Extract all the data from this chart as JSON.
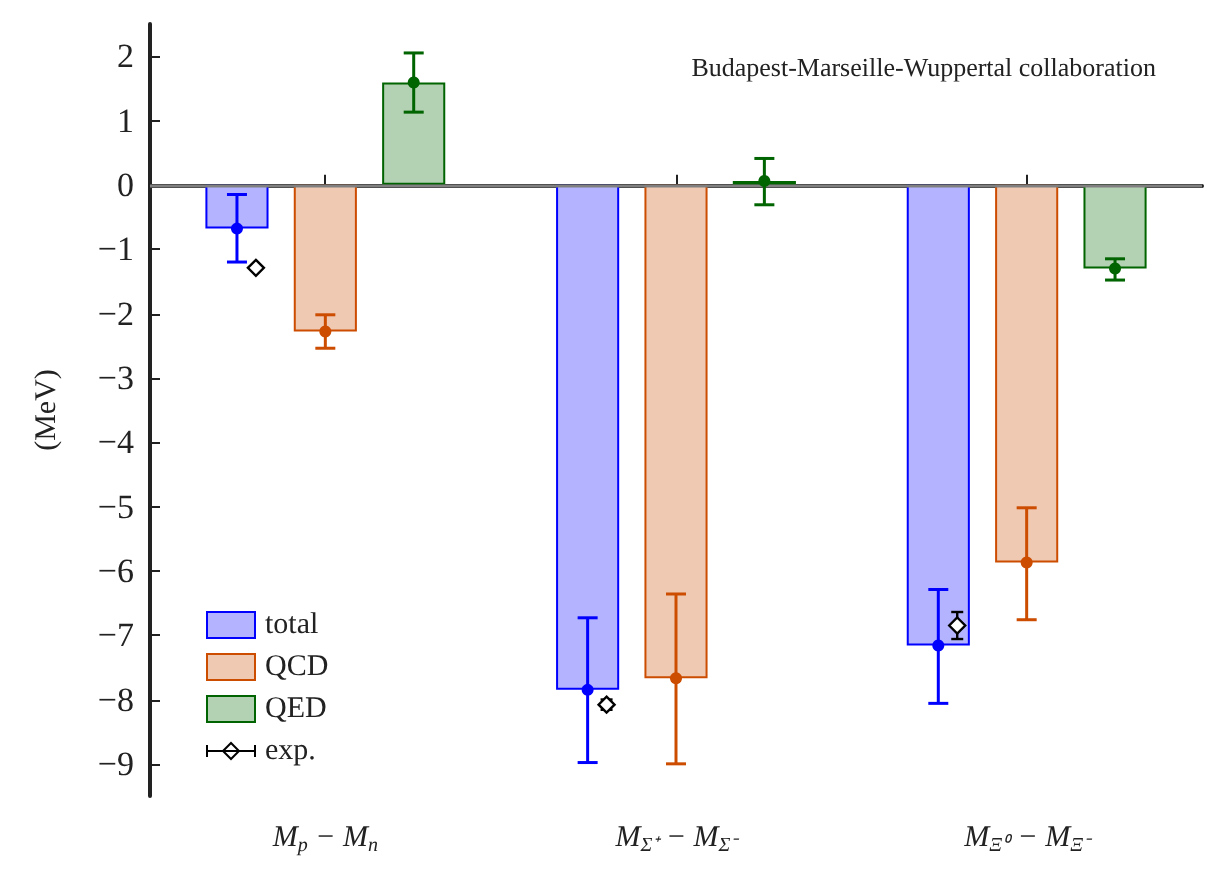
{
  "chart_data": {
    "type": "bar",
    "title": "Budapest-Marseille-Wuppertal collaboration",
    "ylabel": "(MeV)",
    "categories": [
      "M$_{p}$ − M$_{n}$",
      "M$_{Σ⁺}$ − M$_{Σ⁻}$",
      "M$_{Ξ⁰}$ − M$_{Ξ⁻}$"
    ],
    "series": [
      {
        "name": "total",
        "color": "#0000ff",
        "values": [
          -0.68,
          -7.85,
          -7.16
        ],
        "errors": [
          [
            -1.2,
            -0.15
          ],
          [
            -8.98,
            -6.73
          ],
          [
            -8.06,
            -6.29
          ]
        ]
      },
      {
        "name": "QCD",
        "color": "#cc4c00",
        "values": [
          -2.28,
          -7.67,
          -5.87
        ],
        "errors": [
          [
            -2.54,
            -2.02
          ],
          [
            -9.0,
            -6.36
          ],
          [
            -6.76,
            -5.02
          ]
        ]
      },
      {
        "name": "QED",
        "color": "#006400",
        "values": [
          1.59,
          0.06,
          -1.3
        ],
        "errors": [
          [
            1.13,
            2.05
          ],
          [
            -0.31,
            0.41
          ],
          [
            -1.48,
            -1.15
          ]
        ]
      },
      {
        "name": "exp.",
        "type": "scatter",
        "color": "#000000",
        "marker": "diamond",
        "x": [
          "M$_{p}$ − M$_{n}$",
          "M$_{Σ⁺}$ − M$_{Σ⁻}$",
          "M$_{Ξ⁰}$ − M$_{Ξ⁻}$"
        ],
        "values": [
          -1.29,
          -8.08,
          -6.85
        ],
        "errors": [
          null,
          0.08,
          0.21
        ]
      },
      {
        "type": "scatter",
        "color": "#0000ff",
        "marker": "circle",
        "x": [
          "M$_{p}$ − M$_{n}$",
          "M$_{Σ⁺}$ − M$_{Σ⁻}$",
          "M$_{Ξ⁰}$ − M$_{Ξ⁻}$"
        ],
        "values": [
          -0.68,
          -7.85,
          -7.16
        ]
      },
      {
        "type": "scatter",
        "color": "#cc4c00",
        "marker": "circle",
        "x": [
          "M$_{p}$ − M$_{n}$",
          "M$_{Σ⁺}$ − M$_{Σ⁻}$",
          "M$_{Ξ⁰}$ − M$_{Ξ⁻}$"
        ],
        "values": [
          -2.28,
          -7.67,
          -5.87
        ]
      },
      {
        "type": "scatter",
        "color": "#006400",
        "marker": "circle",
        "x": [
          "M$_{p}$ − M$_{n}$",
          "M$_{Σ⁺}$ − M$_{Σ⁻}$",
          "M$_{Ξ⁰}$ − M$_{Ξ⁻}$"
        ],
        "values": [
          1.59,
          0.06,
          -1.3
        ]
      }
    ],
    "ylim": [
      -9.5,
      2.5
    ],
    "yticks": [
      -9,
      -8,
      -7,
      -6,
      -5,
      -4,
      -3,
      -2,
      -1,
      0,
      1,
      2
    ],
    "ref_lines": [
      {
        "axis": "y",
        "value": 0,
        "color": "#808080"
      }
    ],
    "grid": false,
    "legend": "bottom left"
  }
}
